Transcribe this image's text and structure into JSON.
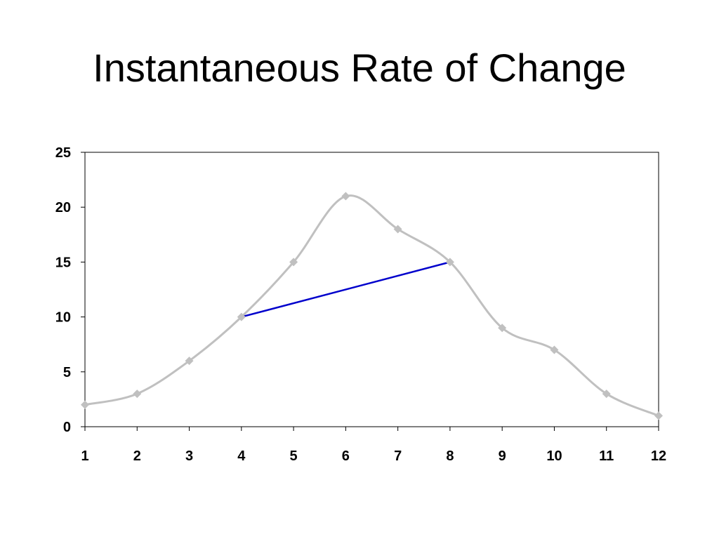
{
  "slide": {
    "title": "Instantaneous Rate of Change"
  },
  "chart_data": {
    "type": "line",
    "title": "",
    "xlabel": "",
    "ylabel": "",
    "categories": [
      "1",
      "2",
      "3",
      "4",
      "5",
      "6",
      "7",
      "8",
      "9",
      "10",
      "11",
      "12"
    ],
    "series": [
      {
        "values": [
          2,
          3,
          6,
          10,
          15,
          21,
          18,
          15,
          9,
          7,
          3,
          1
        ],
        "color": "#c0c0c0",
        "marker": "diamond",
        "smooth": true
      }
    ],
    "secant_line": {
      "from": {
        "x": "4",
        "y": 10
      },
      "to": {
        "x": "8",
        "y": 15
      },
      "color": "#0000cc"
    },
    "ylim": [
      0,
      25
    ],
    "yticks": [
      0,
      5,
      10,
      15,
      20,
      25
    ],
    "grid": false,
    "legend": "none"
  }
}
